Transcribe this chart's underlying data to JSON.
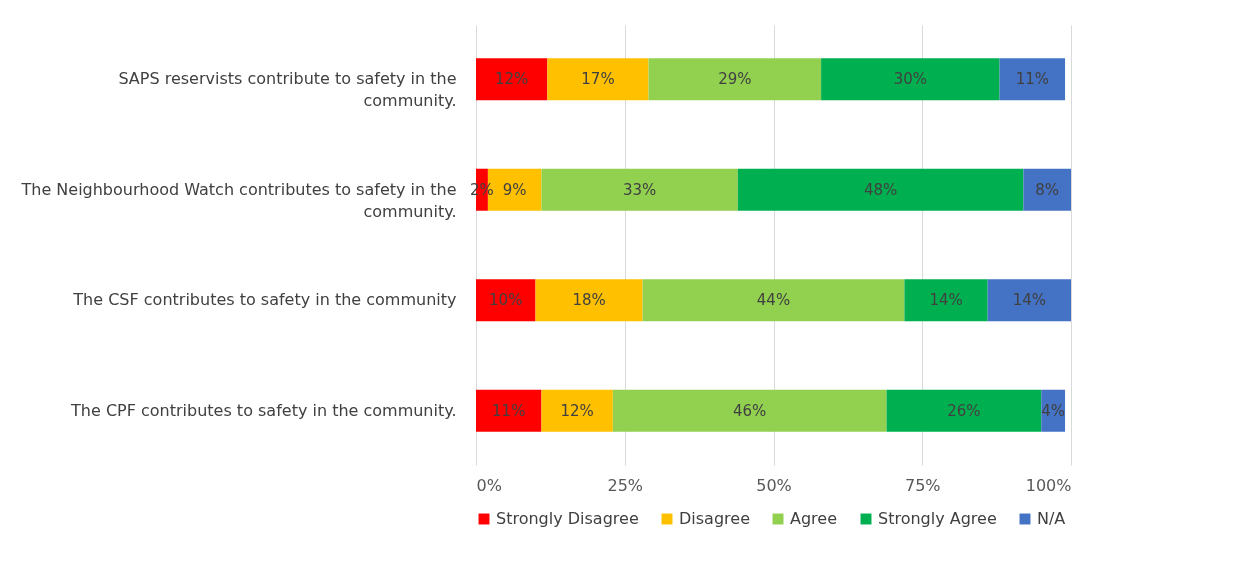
{
  "chart_data": {
    "type": "bar",
    "orientation": "horizontal",
    "stacked": true,
    "categories": [
      "SAPS reservists contribute to safety in the community.",
      "The Neighbourhood Watch contributes to safety in the community.",
      "The CSF contributes to safety in the community",
      "The CPF contributes to safety in the community."
    ],
    "series": [
      {
        "name": "Strongly Disagree",
        "color": "#ff0000",
        "values": [
          12,
          2,
          10,
          11
        ],
        "value_labels": [
          "12%",
          "2%",
          "10%",
          "11%"
        ]
      },
      {
        "name": "Disagree",
        "color": "#ffc000",
        "values": [
          17,
          9,
          18,
          12
        ],
        "value_labels": [
          "17%",
          "9%",
          "18%",
          "12%"
        ]
      },
      {
        "name": "Agree",
        "color": "#92d050",
        "values": [
          29,
          33,
          44,
          46
        ],
        "value_labels": [
          "29%",
          "33%",
          "44%",
          "46%"
        ]
      },
      {
        "name": "Strongly Agree",
        "color": "#00b050",
        "values": [
          30,
          48,
          14,
          26
        ],
        "value_labels": [
          "30%",
          "48%",
          "14%",
          "26%"
        ]
      },
      {
        "name": "N/A",
        "color": "#4472c4",
        "values": [
          11,
          8,
          14,
          4
        ],
        "value_labels": [
          "11%",
          "8%",
          "14%",
          "4%"
        ]
      }
    ],
    "xlim": [
      0,
      100
    ],
    "xticks": [
      {
        "value": 0,
        "label": "0%"
      },
      {
        "value": 25,
        "label": "25%"
      },
      {
        "value": 50,
        "label": "50%"
      },
      {
        "value": 75,
        "label": "75%"
      },
      {
        "value": 100,
        "label": "100%"
      }
    ],
    "grid": "x",
    "legend": "bottom"
  }
}
